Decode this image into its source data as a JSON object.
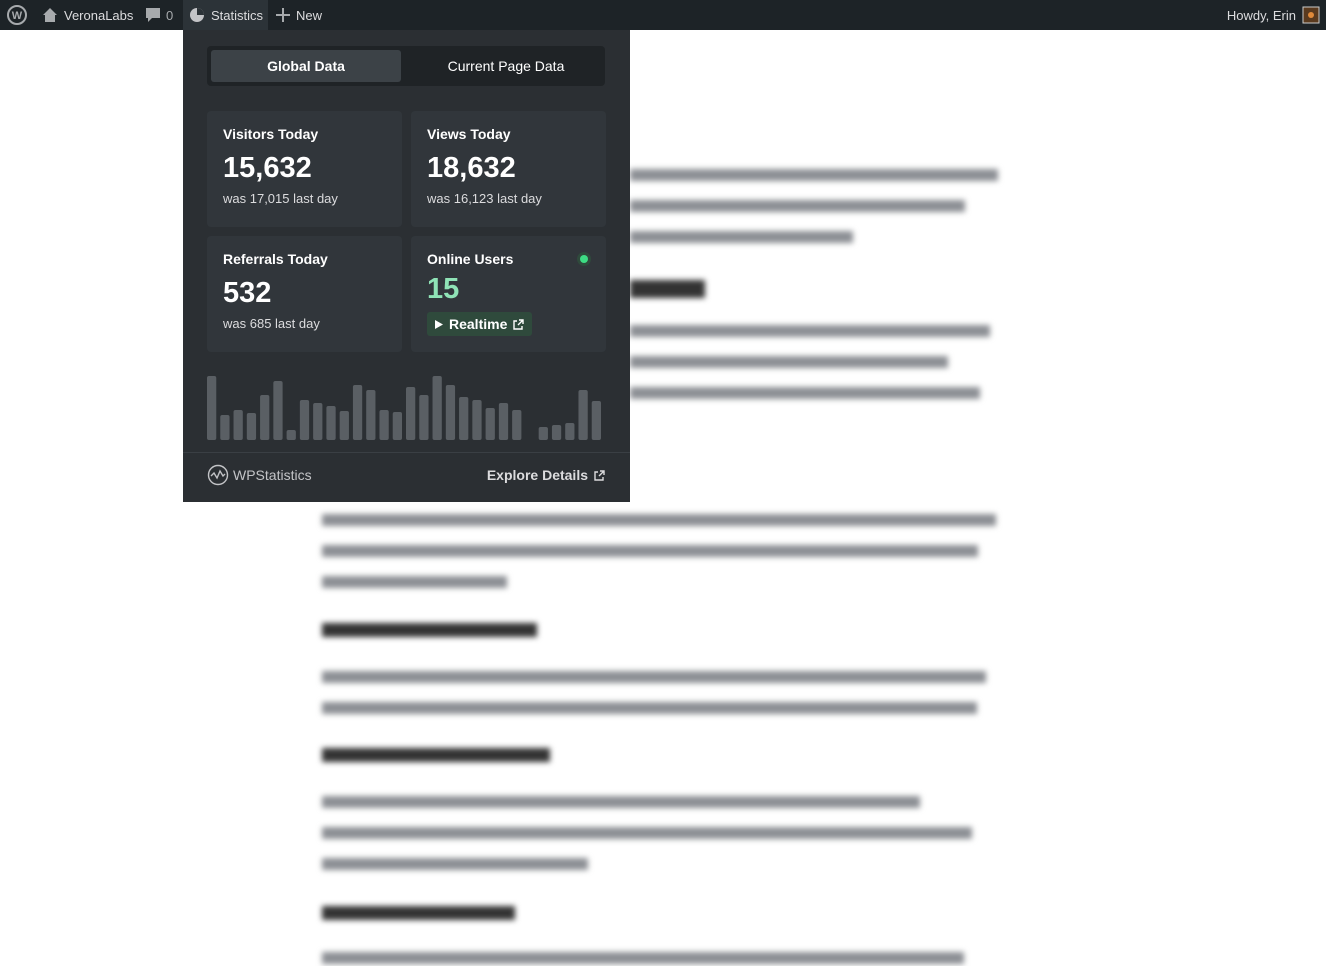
{
  "admin_bar": {
    "site": "VeronaLabs",
    "comments": "0",
    "statistics": "Statistics",
    "new": "New",
    "greeting": "Howdy, Erin"
  },
  "tabs": [
    "Global Data",
    "Current Page Data"
  ],
  "cards": [
    {
      "label": "Visitors Today",
      "value": "15,632",
      "previous": "was 17,015 last day"
    },
    {
      "label": "Views Today",
      "value": "18,632",
      "previous": "was 16,123 last day"
    },
    {
      "label": "Referrals Today",
      "value": "532",
      "previous": "was 685 last day"
    },
    {
      "label": "Online Users",
      "value": "15",
      "button": "Realtime"
    }
  ],
  "chart_data": {
    "type": "bar",
    "color": "#5a5f64",
    "values": [
      64,
      25,
      30,
      27,
      45,
      59,
      10,
      40,
      37,
      34,
      29,
      55,
      50,
      30,
      28,
      53,
      45,
      64,
      55,
      43,
      40,
      32,
      37,
      30,
      0,
      13,
      15,
      17,
      50,
      39
    ]
  },
  "footer": {
    "brand": "WPStatistics",
    "link": "Explore Details"
  }
}
